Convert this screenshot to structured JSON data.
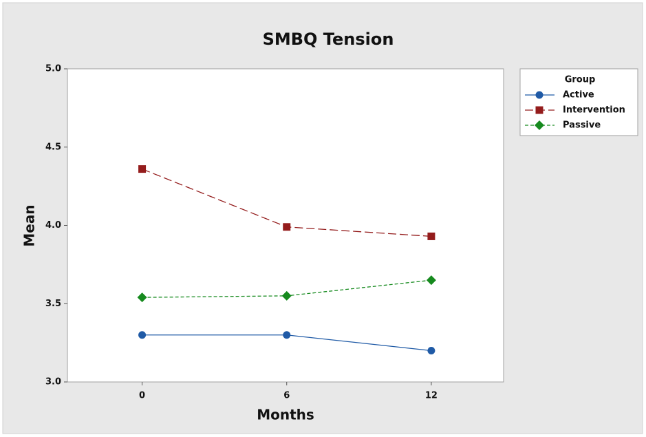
{
  "chart_data": {
    "type": "line",
    "title": "SMBQ Tension",
    "x_label": "Months",
    "y_label": "Mean",
    "x": [
      0,
      6,
      12
    ],
    "series": [
      {
        "name": "Active",
        "color": "#1f5aa6",
        "marker": "circle",
        "line_style": "solid",
        "values": [
          3.3,
          3.3,
          3.2
        ]
      },
      {
        "name": "Intervention",
        "color": "#941c1c",
        "marker": "square",
        "line_style": "long-dash",
        "values": [
          4.36,
          3.99,
          3.93
        ]
      },
      {
        "name": "Passive",
        "color": "#168a1e",
        "marker": "diamond",
        "line_style": "short-dash",
        "values": [
          3.54,
          3.55,
          3.65
        ]
      }
    ],
    "legend_title": "Group",
    "legend_position": "right",
    "xlim": [
      -3.1,
      15
    ],
    "xticks": [
      0,
      6,
      12
    ],
    "ylim": [
      3.0,
      5.0
    ],
    "yticks": [
      {
        "value": 3.0,
        "label": "3.0"
      },
      {
        "value": 3.5,
        "label": "3.5"
      },
      {
        "value": 4.0,
        "label": "4.0"
      },
      {
        "value": 4.5,
        "label": "4.5"
      },
      {
        "value": 5.0,
        "label": "5.0"
      }
    ]
  }
}
